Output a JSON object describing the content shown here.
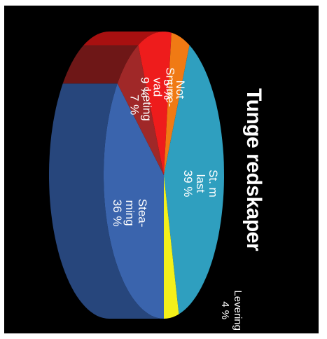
{
  "chart_data": {
    "type": "pie",
    "title": "Tunge redskaper",
    "slices": [
      {
        "label_lines": [
          "Stea-",
          "ming"
        ],
        "value": 36,
        "value_label": "36 %",
        "color": "#3a64ad",
        "side": "#27467c"
      },
      {
        "label_lines": [
          "Leting"
        ],
        "value": 7,
        "value_label": "7 %",
        "color": "#a02828",
        "side": "#6e1717"
      },
      {
        "label_lines": [
          "Snurre-",
          "vad"
        ],
        "value": 9,
        "value_label": "9 %",
        "color": "#ee1c1c",
        "side": "#a81010"
      },
      {
        "label_lines": [
          "Not"
        ],
        "value": 5,
        "value_label": "5 %",
        "color": "#f07a14",
        "side": "#b4540a"
      },
      {
        "label_lines": [
          "St. m",
          "last"
        ],
        "value": 39,
        "value_label": "39 %",
        "color": "#2f9fbf",
        "side": "#1f728b"
      },
      {
        "label_lines": [
          "Levering"
        ],
        "value": 4,
        "value_label": "4 %",
        "color": "#f4f01a",
        "side": "#b0ad10"
      }
    ]
  }
}
